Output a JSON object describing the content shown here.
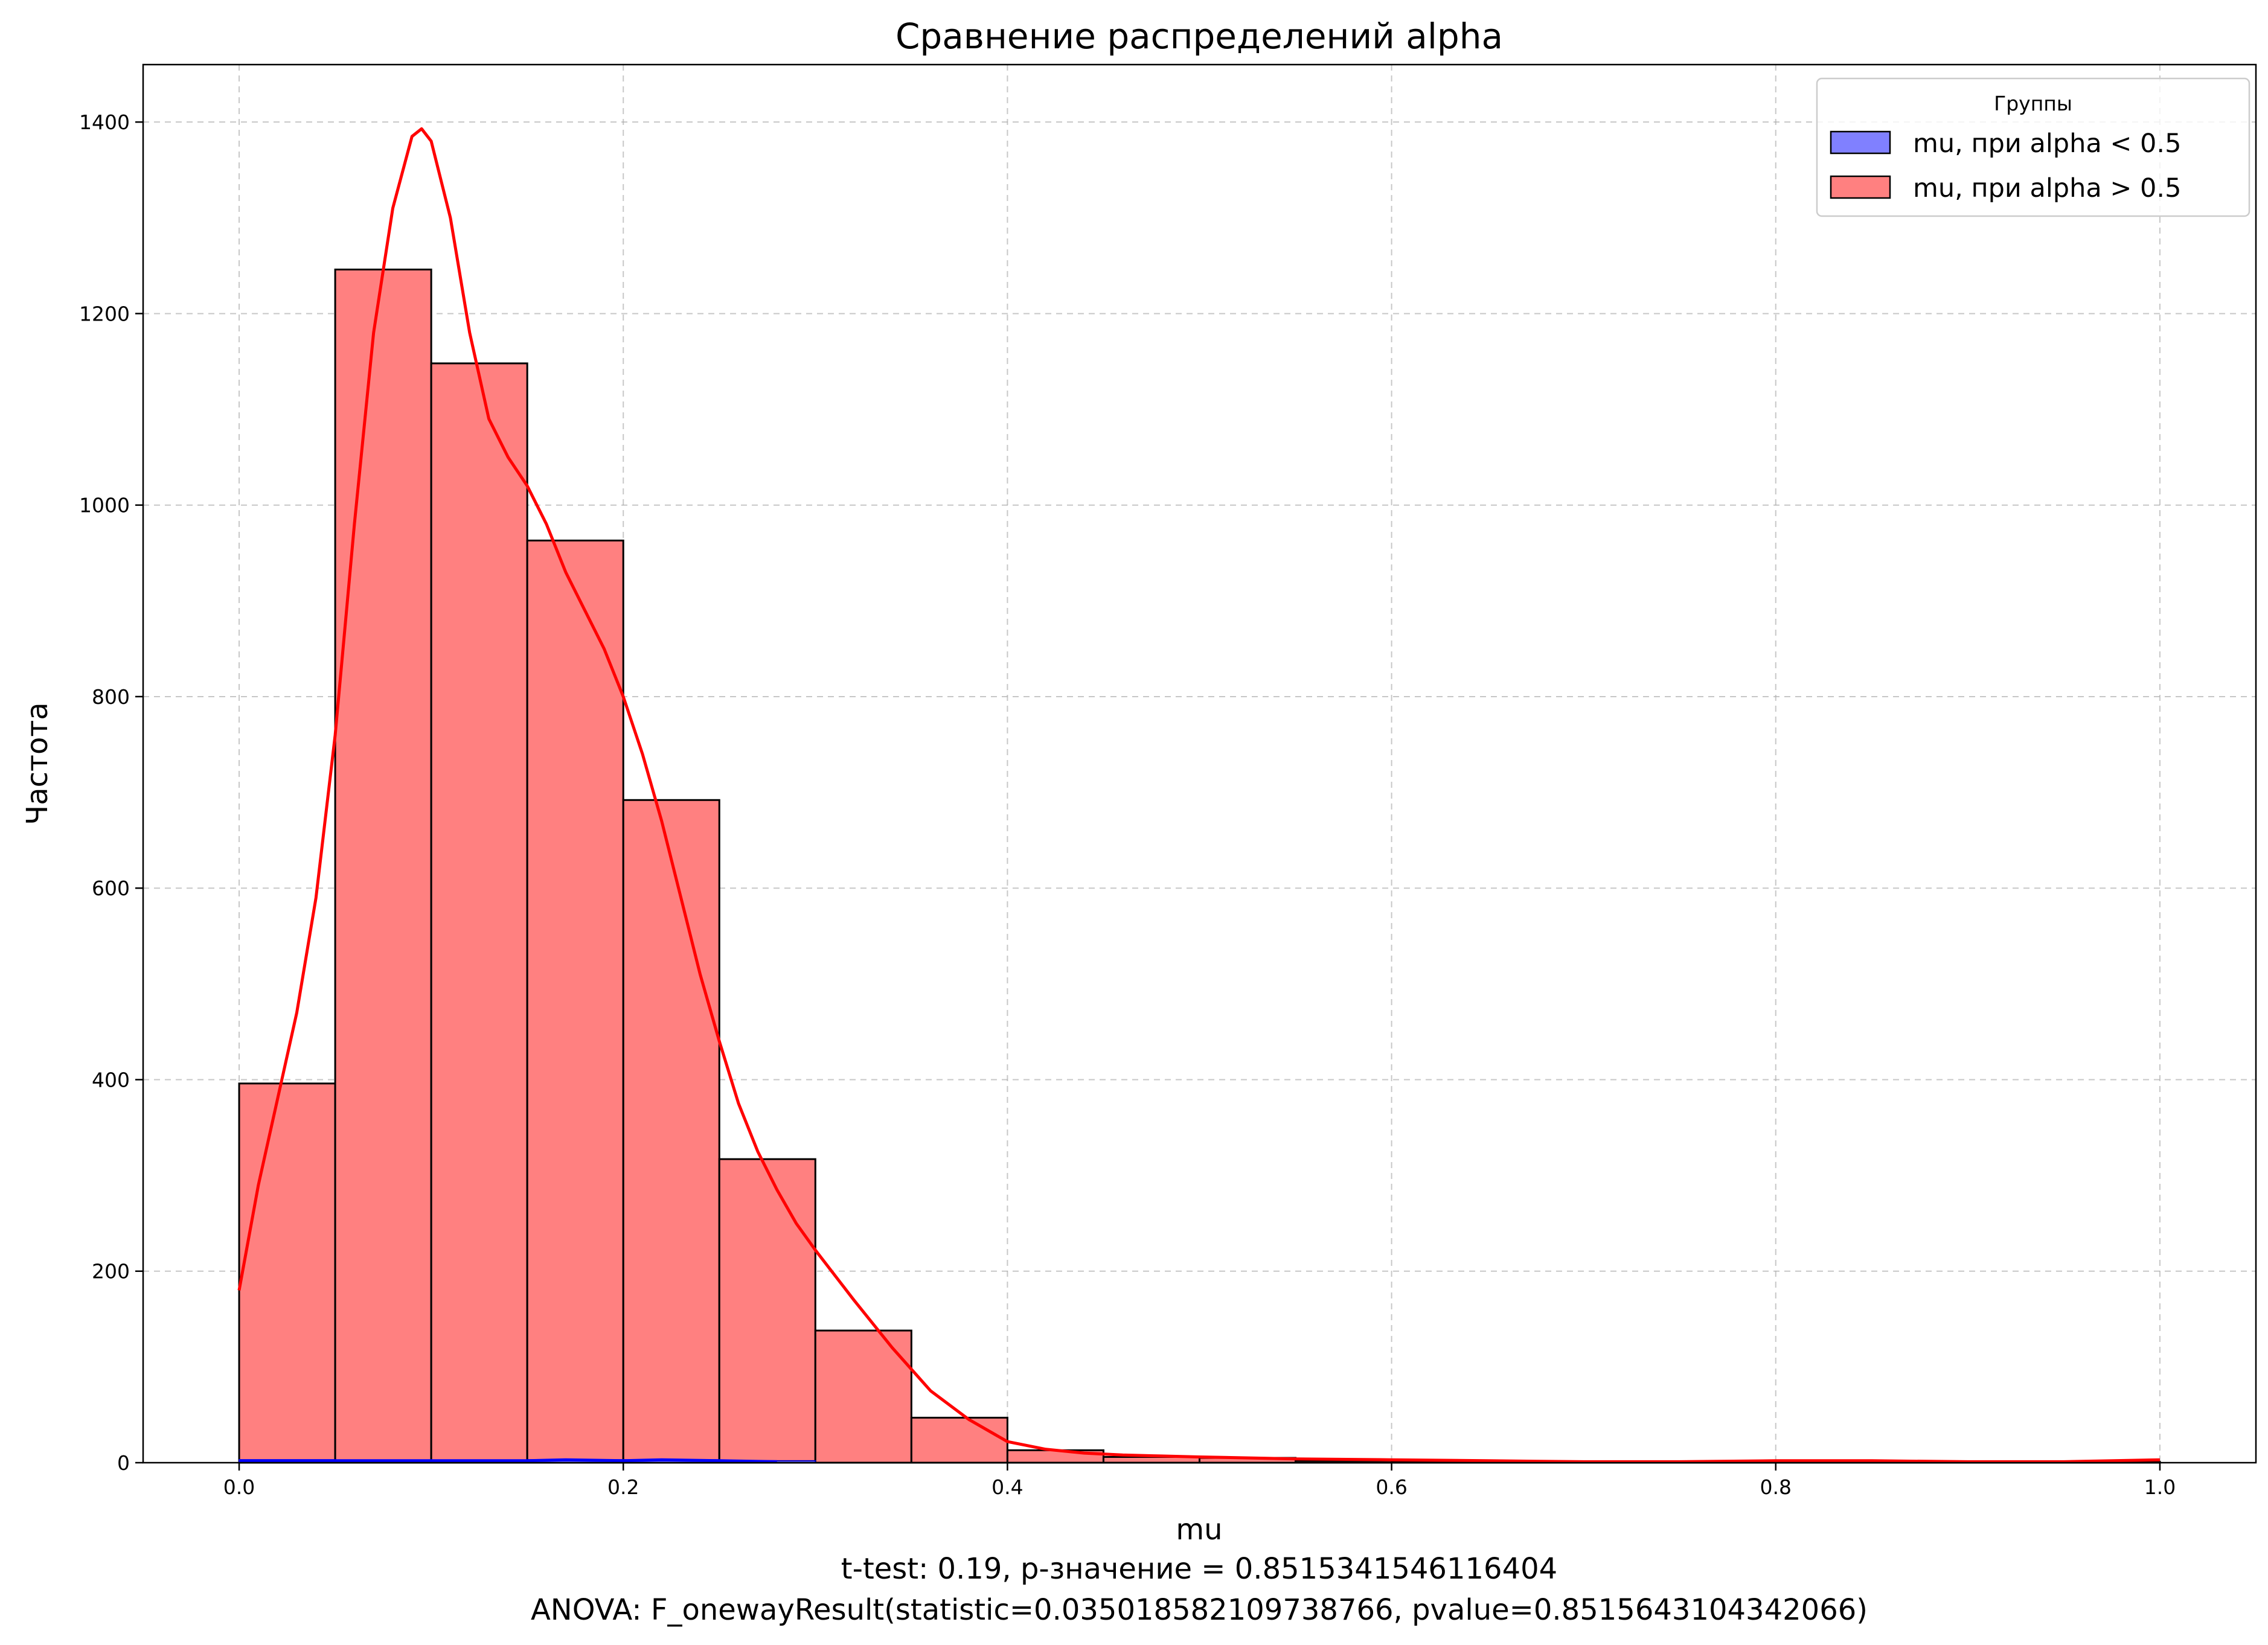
{
  "chart_data": {
    "type": "bar",
    "title": "Сравнение распределений alpha",
    "xlabel": "mu",
    "ylabel": "Частота",
    "xlim": [
      -0.05,
      1.05
    ],
    "ylim": [
      0,
      1460
    ],
    "x_ticks": [
      0.0,
      0.2,
      0.4,
      0.6,
      0.8,
      1.0
    ],
    "x_tick_labels": [
      "0.0",
      "0.2",
      "0.4",
      "0.6",
      "0.8",
      "1.0"
    ],
    "y_ticks": [
      0,
      200,
      400,
      600,
      800,
      1000,
      1200,
      1400
    ],
    "y_tick_labels": [
      "0",
      "200",
      "400",
      "600",
      "800",
      "1000",
      "1200",
      "1400"
    ],
    "grid": true,
    "legend": {
      "title": "Группы",
      "placement": "top-right",
      "entries": [
        "mu, при alpha < 0.5",
        "mu, при alpha > 0.5"
      ]
    },
    "bin_edges": [
      0.0,
      0.05,
      0.1,
      0.15,
      0.2,
      0.25,
      0.3,
      0.35,
      0.4,
      0.45,
      0.5,
      0.55,
      0.6,
      0.65,
      0.7,
      0.75,
      0.8,
      0.85,
      0.9,
      0.95,
      1.0
    ],
    "series": [
      {
        "name": "mu, при alpha > 0.5",
        "color": "#ff8080",
        "edge_color": "#000000",
        "counts": [
          396,
          1246,
          1148,
          963,
          692,
          317,
          138,
          47,
          13,
          6,
          5,
          2,
          1,
          0,
          0,
          0,
          1,
          0,
          0,
          1
        ],
        "kde_color": "#ff0000",
        "kde": {
          "x": [
            0.0,
            0.01,
            0.02,
            0.03,
            0.04,
            0.05,
            0.06,
            0.07,
            0.08,
            0.09,
            0.095,
            0.1,
            0.11,
            0.12,
            0.13,
            0.14,
            0.15,
            0.16,
            0.17,
            0.18,
            0.19,
            0.2,
            0.21,
            0.22,
            0.23,
            0.24,
            0.25,
            0.26,
            0.27,
            0.28,
            0.29,
            0.3,
            0.32,
            0.34,
            0.36,
            0.38,
            0.4,
            0.42,
            0.44,
            0.46,
            0.48,
            0.5,
            0.55,
            0.6,
            0.65,
            0.7,
            0.75,
            0.8,
            0.85,
            0.9,
            0.95,
            1.0
          ],
          "y": [
            180,
            290,
            380,
            470,
            590,
            760,
            980,
            1180,
            1310,
            1385,
            1393,
            1380,
            1300,
            1180,
            1090,
            1050,
            1020,
            980,
            930,
            890,
            850,
            800,
            740,
            670,
            590,
            510,
            440,
            375,
            325,
            285,
            250,
            222,
            170,
            120,
            75,
            45,
            22,
            14,
            10,
            8,
            7,
            6,
            4,
            3,
            2,
            1,
            1,
            2,
            2,
            1,
            1,
            3
          ]
        }
      },
      {
        "name": "mu, при alpha < 0.5",
        "color": "#8080ff",
        "edge_color": "#0000cc",
        "counts": [
          3,
          2,
          2,
          3,
          3,
          2
        ],
        "kde_color": "#0000ff",
        "kde": {
          "x": [
            0.0,
            0.05,
            0.1,
            0.15,
            0.17,
            0.2,
            0.22,
            0.25,
            0.28
          ],
          "y": [
            2,
            2,
            2,
            2,
            3,
            2,
            3,
            2,
            1
          ]
        }
      }
    ],
    "annotations": [
      "t-test: 0.19, p-значение = 0.8515341546116404",
      "ANOVA: F_onewayResult(statistic=0.035018582109738766, pvalue=0.8515643104342066)"
    ]
  }
}
